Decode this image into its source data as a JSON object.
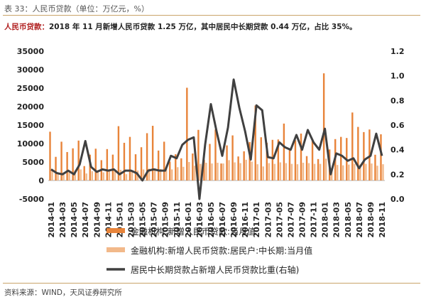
{
  "figure_title": "表 33：人民币贷款（单位：万亿元，%）",
  "headline": {
    "label": "人民币贷款：",
    "text": "2018 年 11 月新增人民币贷款 1.25 万亿，其中居民中长期贷款 0.44 万亿，占比 35%。"
  },
  "source": "资料来源：WIND，天风证券研究所",
  "colors": {
    "bar_total": "#e8843a",
    "bar_household": "#f2b98a",
    "line_ratio": "#404040",
    "header_rule": "#c9a46a",
    "headline_label": "#b01e1e"
  },
  "chart_data": {
    "type": "bar+line",
    "x": [
      "2014-01",
      "2014-02",
      "2014-03",
      "2014-04",
      "2014-05",
      "2014-06",
      "2014-07",
      "2014-08",
      "2014-09",
      "2014-10",
      "2014-11",
      "2014-12",
      "2015-01",
      "2015-02",
      "2015-03",
      "2015-04",
      "2015-05",
      "2015-06",
      "2015-07",
      "2015-08",
      "2015-09",
      "2015-10",
      "2015-11",
      "2015-12",
      "2016-01",
      "2016-02",
      "2016-03",
      "2016-04",
      "2016-05",
      "2016-06",
      "2016-07",
      "2016-08",
      "2016-09",
      "2016-10",
      "2016-11",
      "2016-12",
      "2017-01",
      "2017-02",
      "2017-03",
      "2017-04",
      "2017-05",
      "2017-06",
      "2017-07",
      "2017-08",
      "2017-09",
      "2017-10",
      "2017-11",
      "2017-12",
      "2018-01",
      "2018-02",
      "2018-03",
      "2018-04",
      "2018-05",
      "2018-06",
      "2018-07",
      "2018-08",
      "2018-09",
      "2018-10",
      "2018-11"
    ],
    "x_tick_labels": [
      "2014-01",
      "2014-03",
      "2014-05",
      "2014-07",
      "2014-09",
      "2014-11",
      "2015-01",
      "2015-03",
      "2015-05",
      "2015-07",
      "2015-09",
      "2015-11",
      "2016-01",
      "2016-03",
      "2016-05",
      "2016-07",
      "2016-09",
      "2016-11",
      "2017-01",
      "2017-03",
      "2017-05",
      "2017-07",
      "2017-09",
      "2017-11",
      "2018-01",
      "2018-03",
      "2018-05",
      "2018-07",
      "2018-09",
      "2018-11"
    ],
    "y_left": {
      "min": -5000,
      "max": 35000,
      "ticks": [
        -5000,
        0,
        5000,
        10000,
        15000,
        20000,
        25000,
        30000,
        35000
      ]
    },
    "y_right": {
      "min": 0,
      "max": 1.2,
      "ticks": [
        "0.0",
        "0.2",
        "0.4",
        "0.6",
        "0.8",
        "1.0",
        "1.2"
      ]
    },
    "series": [
      {
        "name": "金融机构:新增人民币贷款:当月值",
        "kind": "bar",
        "axis": "left",
        "values": [
          13200,
          6400,
          10500,
          7700,
          8700,
          10800,
          3900,
          7000,
          8600,
          5500,
          8500,
          7000,
          14700,
          10200,
          11800,
          7100,
          9000,
          12800,
          14800,
          8100,
          10500,
          5100,
          7100,
          6000,
          25100,
          7300,
          13700,
          5600,
          9900,
          13800,
          4600,
          9500,
          12200,
          6500,
          7900,
          10400,
          20300,
          11700,
          10200,
          11000,
          11100,
          15400,
          8300,
          10900,
          12700,
          6600,
          11200,
          5800,
          29000,
          8400,
          11200,
          11800,
          11500,
          18400,
          14500,
          13100,
          13800,
          6970,
          12500
        ]
      },
      {
        "name": "金融机构:新增人民币贷款:居民户:中长期:当月值",
        "kind": "bar",
        "axis": "left",
        "values": [
          3100,
          1600,
          2200,
          2700,
          2700,
          3000,
          1900,
          2500,
          2800,
          2200,
          2600,
          2500,
          2900,
          1700,
          2700,
          2700,
          3000,
          3200,
          3300,
          3100,
          3300,
          3000,
          3600,
          3700,
          5000,
          4000,
          4500,
          4800,
          4600,
          4800,
          4600,
          5500,
          4900,
          4700,
          5600,
          5100,
          4400,
          3800,
          4700,
          4500,
          4900,
          4700,
          4500,
          4400,
          4800,
          4700,
          4500,
          4500,
          5900,
          3000,
          4200,
          4100,
          4300,
          4500,
          4300,
          4500,
          4600,
          4000,
          4400
        ]
      },
      {
        "name": "居民中长期贷款占新增人民币贷款比重(右轴)",
        "kind": "line",
        "axis": "right",
        "values": [
          0.24,
          0.21,
          0.2,
          0.23,
          0.2,
          0.28,
          0.47,
          0.26,
          0.22,
          0.24,
          0.23,
          0.24,
          0.2,
          0.23,
          0.23,
          0.21,
          0.15,
          0.23,
          0.24,
          0.23,
          0.23,
          0.35,
          0.33,
          0.44,
          0.48,
          0.5,
          0.0,
          0.44,
          0.77,
          0.55,
          0.35,
          0.58,
          0.97,
          0.74,
          0.55,
          0.32,
          0.76,
          0.72,
          0.34,
          0.33,
          0.46,
          0.42,
          0.4,
          0.52,
          0.4,
          0.56,
          0.46,
          0.4,
          0.57,
          0.2,
          0.37,
          0.35,
          0.31,
          0.33,
          0.25,
          0.32,
          0.35,
          0.53,
          0.35
        ]
      }
    ],
    "legend_position": "bottom"
  }
}
